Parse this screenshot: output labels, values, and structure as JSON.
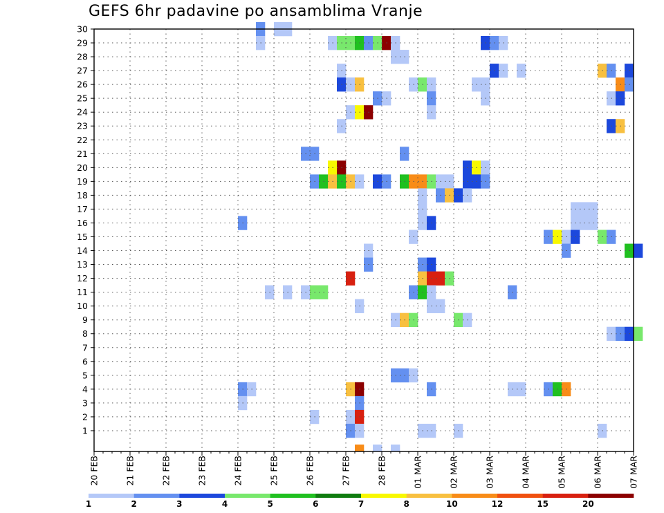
{
  "chart_data": {
    "type": "heatmap",
    "title": "GEFS 6hr padavine po ansamblima Vranje",
    "xlabel": "",
    "ylabel": "",
    "x_tick_labels": [
      "20 FEB",
      "21 FEB",
      "22 FEB",
      "23 FEB",
      "24 FEB",
      "25 FEB",
      "26 FEB",
      "27 FEB",
      "28 FEB",
      "01 MAR",
      "02 MAR",
      "03 MAR",
      "04 MAR",
      "05 MAR",
      "06 MAR",
      "07 MAR"
    ],
    "x_steps_per_day": 4,
    "y_tick_labels": [
      "1",
      "2",
      "3",
      "4",
      "5",
      "6",
      "7",
      "8",
      "9",
      "10",
      "11",
      "12",
      "13",
      "14",
      "15",
      "16",
      "17",
      "18",
      "19",
      "20",
      "21",
      "22",
      "23",
      "24",
      "25",
      "26",
      "27",
      "28",
      "29",
      "30"
    ],
    "grid": true,
    "legend_position": "bottom",
    "color_bins": [
      {
        "label": "1",
        "color": "#b4c8f8"
      },
      {
        "label": "2",
        "color": "#6490f0"
      },
      {
        "label": "3",
        "color": "#1c48dc"
      },
      {
        "label": "4",
        "color": "#78e86c"
      },
      {
        "label": "5",
        "color": "#20c020"
      },
      {
        "label": "6",
        "color": "#107c10"
      },
      {
        "label": "7",
        "color": "#f8f800"
      },
      {
        "label": "8",
        "color": "#f8c040"
      },
      {
        "label": "10",
        "color": "#f88c18"
      },
      {
        "label": "12",
        "color": "#f05010"
      },
      {
        "label": "15",
        "color": "#d82010"
      },
      {
        "label": "20",
        "color": "#8c0000"
      }
    ],
    "cells": [
      {
        "member": 30,
        "step": 18,
        "bin": 1
      },
      {
        "member": 30,
        "step": 20,
        "bin": 0
      },
      {
        "member": 30,
        "step": 21,
        "bin": 0
      },
      {
        "member": 29,
        "step": 18,
        "bin": 0
      },
      {
        "member": 29,
        "step": 26,
        "bin": 0
      },
      {
        "member": 29,
        "step": 27,
        "bin": 3
      },
      {
        "member": 29,
        "step": 28,
        "bin": 3
      },
      {
        "member": 29,
        "step": 29,
        "bin": 4
      },
      {
        "member": 29,
        "step": 30,
        "bin": 1
      },
      {
        "member": 29,
        "step": 31,
        "bin": 3
      },
      {
        "member": 29,
        "step": 32,
        "bin": 11
      },
      {
        "member": 29,
        "step": 33,
        "bin": 0
      },
      {
        "member": 29,
        "step": 43,
        "bin": 2
      },
      {
        "member": 29,
        "step": 44,
        "bin": 1
      },
      {
        "member": 29,
        "step": 45,
        "bin": 0
      },
      {
        "member": 28,
        "step": 33,
        "bin": 0
      },
      {
        "member": 28,
        "step": 34,
        "bin": 0
      },
      {
        "member": 27,
        "step": 27,
        "bin": 0
      },
      {
        "member": 27,
        "step": 44,
        "bin": 2
      },
      {
        "member": 27,
        "step": 45,
        "bin": 0
      },
      {
        "member": 27,
        "step": 47,
        "bin": 0
      },
      {
        "member": 27,
        "step": 56,
        "bin": 7
      },
      {
        "member": 27,
        "step": 57,
        "bin": 1
      },
      {
        "member": 27,
        "step": 59,
        "bin": 2
      },
      {
        "member": 26,
        "step": 27,
        "bin": 2
      },
      {
        "member": 26,
        "step": 28,
        "bin": 0
      },
      {
        "member": 26,
        "step": 29,
        "bin": 7
      },
      {
        "member": 26,
        "step": 35,
        "bin": 0
      },
      {
        "member": 26,
        "step": 36,
        "bin": 3
      },
      {
        "member": 26,
        "step": 37,
        "bin": 0
      },
      {
        "member": 26,
        "step": 42,
        "bin": 0
      },
      {
        "member": 26,
        "step": 43,
        "bin": 0
      },
      {
        "member": 26,
        "step": 58,
        "bin": 8
      },
      {
        "member": 26,
        "step": 59,
        "bin": 1
      },
      {
        "member": 25,
        "step": 31,
        "bin": 1
      },
      {
        "member": 25,
        "step": 32,
        "bin": 0
      },
      {
        "member": 25,
        "step": 37,
        "bin": 1
      },
      {
        "member": 25,
        "step": 43,
        "bin": 0
      },
      {
        "member": 25,
        "step": 57,
        "bin": 0
      },
      {
        "member": 25,
        "step": 58,
        "bin": 2
      },
      {
        "member": 24,
        "step": 28,
        "bin": 0
      },
      {
        "member": 24,
        "step": 29,
        "bin": 6
      },
      {
        "member": 24,
        "step": 30,
        "bin": 11
      },
      {
        "member": 24,
        "step": 37,
        "bin": 0
      },
      {
        "member": 23,
        "step": 27,
        "bin": 0
      },
      {
        "member": 23,
        "step": 57,
        "bin": 2
      },
      {
        "member": 23,
        "step": 58,
        "bin": 7
      },
      {
        "member": 21,
        "step": 23,
        "bin": 1
      },
      {
        "member": 21,
        "step": 24,
        "bin": 1
      },
      {
        "member": 21,
        "step": 34,
        "bin": 1
      },
      {
        "member": 20,
        "step": 26,
        "bin": 6
      },
      {
        "member": 20,
        "step": 27,
        "bin": 11
      },
      {
        "member": 20,
        "step": 41,
        "bin": 2
      },
      {
        "member": 20,
        "step": 42,
        "bin": 6
      },
      {
        "member": 20,
        "step": 43,
        "bin": 0
      },
      {
        "member": 19,
        "step": 24,
        "bin": 1
      },
      {
        "member": 19,
        "step": 25,
        "bin": 4
      },
      {
        "member": 19,
        "step": 26,
        "bin": 7
      },
      {
        "member": 19,
        "step": 27,
        "bin": 4
      },
      {
        "member": 19,
        "step": 28,
        "bin": 7
      },
      {
        "member": 19,
        "step": 29,
        "bin": 0
      },
      {
        "member": 19,
        "step": 31,
        "bin": 2
      },
      {
        "member": 19,
        "step": 32,
        "bin": 1
      },
      {
        "member": 19,
        "step": 34,
        "bin": 4
      },
      {
        "member": 19,
        "step": 35,
        "bin": 8
      },
      {
        "member": 19,
        "step": 36,
        "bin": 8
      },
      {
        "member": 19,
        "step": 37,
        "bin": 3
      },
      {
        "member": 19,
        "step": 38,
        "bin": 0
      },
      {
        "member": 19,
        "step": 39,
        "bin": 0
      },
      {
        "member": 19,
        "step": 41,
        "bin": 2
      },
      {
        "member": 19,
        "step": 42,
        "bin": 2
      },
      {
        "member": 19,
        "step": 43,
        "bin": 1
      },
      {
        "member": 18,
        "step": 36,
        "bin": 0
      },
      {
        "member": 18,
        "step": 38,
        "bin": 1
      },
      {
        "member": 18,
        "step": 39,
        "bin": 7
      },
      {
        "member": 18,
        "step": 40,
        "bin": 2
      },
      {
        "member": 18,
        "step": 41,
        "bin": 0
      },
      {
        "member": 17,
        "step": 36,
        "bin": 0
      },
      {
        "member": 17,
        "step": 53,
        "bin": 0
      },
      {
        "member": 17,
        "step": 54,
        "bin": 0
      },
      {
        "member": 17,
        "step": 55,
        "bin": 0
      },
      {
        "member": 16,
        "step": 16,
        "bin": 1
      },
      {
        "member": 16,
        "step": 36,
        "bin": 0
      },
      {
        "member": 16,
        "step": 37,
        "bin": 2
      },
      {
        "member": 16,
        "step": 53,
        "bin": 0
      },
      {
        "member": 16,
        "step": 54,
        "bin": 0
      },
      {
        "member": 16,
        "step": 55,
        "bin": 0
      },
      {
        "member": 15,
        "step": 35,
        "bin": 0
      },
      {
        "member": 15,
        "step": 50,
        "bin": 1
      },
      {
        "member": 15,
        "step": 51,
        "bin": 6
      },
      {
        "member": 15,
        "step": 52,
        "bin": 0
      },
      {
        "member": 15,
        "step": 53,
        "bin": 2
      },
      {
        "member": 15,
        "step": 56,
        "bin": 3
      },
      {
        "member": 15,
        "step": 57,
        "bin": 1
      },
      {
        "member": 14,
        "step": 30,
        "bin": 0
      },
      {
        "member": 14,
        "step": 52,
        "bin": 1
      },
      {
        "member": 14,
        "step": 59,
        "bin": 4
      },
      {
        "member": 14,
        "step": 60,
        "bin": 2
      },
      {
        "member": 13,
        "step": 30,
        "bin": 1
      },
      {
        "member": 13,
        "step": 36,
        "bin": 1
      },
      {
        "member": 13,
        "step": 37,
        "bin": 2
      },
      {
        "member": 12,
        "step": 28,
        "bin": 10
      },
      {
        "member": 12,
        "step": 36,
        "bin": 7
      },
      {
        "member": 12,
        "step": 37,
        "bin": 10
      },
      {
        "member": 12,
        "step": 38,
        "bin": 10
      },
      {
        "member": 12,
        "step": 39,
        "bin": 3
      },
      {
        "member": 11,
        "step": 19,
        "bin": 0
      },
      {
        "member": 11,
        "step": 21,
        "bin": 0
      },
      {
        "member": 11,
        "step": 23,
        "bin": 0
      },
      {
        "member": 11,
        "step": 24,
        "bin": 3
      },
      {
        "member": 11,
        "step": 25,
        "bin": 3
      },
      {
        "member": 11,
        "step": 35,
        "bin": 1
      },
      {
        "member": 11,
        "step": 36,
        "bin": 4
      },
      {
        "member": 11,
        "step": 37,
        "bin": 0
      },
      {
        "member": 11,
        "step": 46,
        "bin": 1
      },
      {
        "member": 10,
        "step": 29,
        "bin": 0
      },
      {
        "member": 10,
        "step": 37,
        "bin": 0
      },
      {
        "member": 10,
        "step": 38,
        "bin": 0
      },
      {
        "member": 9,
        "step": 33,
        "bin": 0
      },
      {
        "member": 9,
        "step": 34,
        "bin": 7
      },
      {
        "member": 9,
        "step": 35,
        "bin": 3
      },
      {
        "member": 9,
        "step": 40,
        "bin": 3
      },
      {
        "member": 9,
        "step": 41,
        "bin": 0
      },
      {
        "member": 8,
        "step": 57,
        "bin": 0
      },
      {
        "member": 8,
        "step": 58,
        "bin": 1
      },
      {
        "member": 8,
        "step": 59,
        "bin": 2
      },
      {
        "member": 8,
        "step": 60,
        "bin": 3
      },
      {
        "member": 5,
        "step": 33,
        "bin": 1
      },
      {
        "member": 5,
        "step": 34,
        "bin": 1
      },
      {
        "member": 5,
        "step": 35,
        "bin": 0
      },
      {
        "member": 4,
        "step": 16,
        "bin": 1
      },
      {
        "member": 4,
        "step": 17,
        "bin": 0
      },
      {
        "member": 4,
        "step": 28,
        "bin": 7
      },
      {
        "member": 4,
        "step": 29,
        "bin": 11
      },
      {
        "member": 4,
        "step": 37,
        "bin": 1
      },
      {
        "member": 4,
        "step": 46,
        "bin": 0
      },
      {
        "member": 4,
        "step": 47,
        "bin": 0
      },
      {
        "member": 4,
        "step": 50,
        "bin": 1
      },
      {
        "member": 4,
        "step": 51,
        "bin": 4
      },
      {
        "member": 4,
        "step": 52,
        "bin": 8
      },
      {
        "member": 3,
        "step": 16,
        "bin": 0
      },
      {
        "member": 3,
        "step": 29,
        "bin": 1
      },
      {
        "member": 2,
        "step": 24,
        "bin": 0
      },
      {
        "member": 2,
        "step": 28,
        "bin": 0
      },
      {
        "member": 2,
        "step": 29,
        "bin": 10
      },
      {
        "member": 1,
        "step": 28,
        "bin": 1
      },
      {
        "member": 1,
        "step": 29,
        "bin": 0
      },
      {
        "member": 1,
        "step": 36,
        "bin": 0
      },
      {
        "member": 1,
        "step": 37,
        "bin": 0
      },
      {
        "member": 1,
        "step": 40,
        "bin": 0
      },
      {
        "member": 1,
        "step": 56,
        "bin": 0
      },
      {
        "member": 0,
        "step": 29,
        "bin": 8
      },
      {
        "member": 0,
        "step": 31,
        "bin": 0
      },
      {
        "member": 0,
        "step": 33,
        "bin": 0
      }
    ]
  }
}
